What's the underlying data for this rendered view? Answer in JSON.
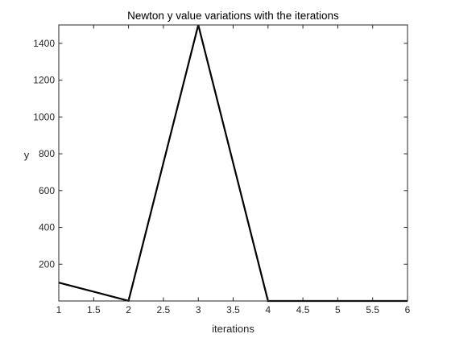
{
  "chart_data": {
    "type": "line",
    "title": "Newton y value variations with the iterations",
    "xlabel": "iterations",
    "ylabel": "y",
    "xlim": [
      1,
      6
    ],
    "ylim": [
      0,
      1500
    ],
    "x_ticks": [
      1,
      1.5,
      2,
      2.5,
      3,
      3.5,
      4,
      4.5,
      5,
      5.5,
      6
    ],
    "x_tick_labels": [
      "1",
      "1.5",
      "2",
      "2.5",
      "3",
      "3.5",
      "4",
      "4.5",
      "5",
      "5.5",
      "6"
    ],
    "y_ticks": [
      200,
      400,
      600,
      800,
      1000,
      1200,
      1400
    ],
    "y_tick_labels": [
      "200",
      "400",
      "600",
      "800",
      "1000",
      "1200",
      "1400"
    ],
    "grid": false,
    "series": [
      {
        "x": [
          1,
          2,
          3,
          4,
          5,
          6
        ],
        "values": [
          100,
          1,
          1500,
          0,
          0,
          0
        ],
        "color": "#000000"
      }
    ]
  }
}
